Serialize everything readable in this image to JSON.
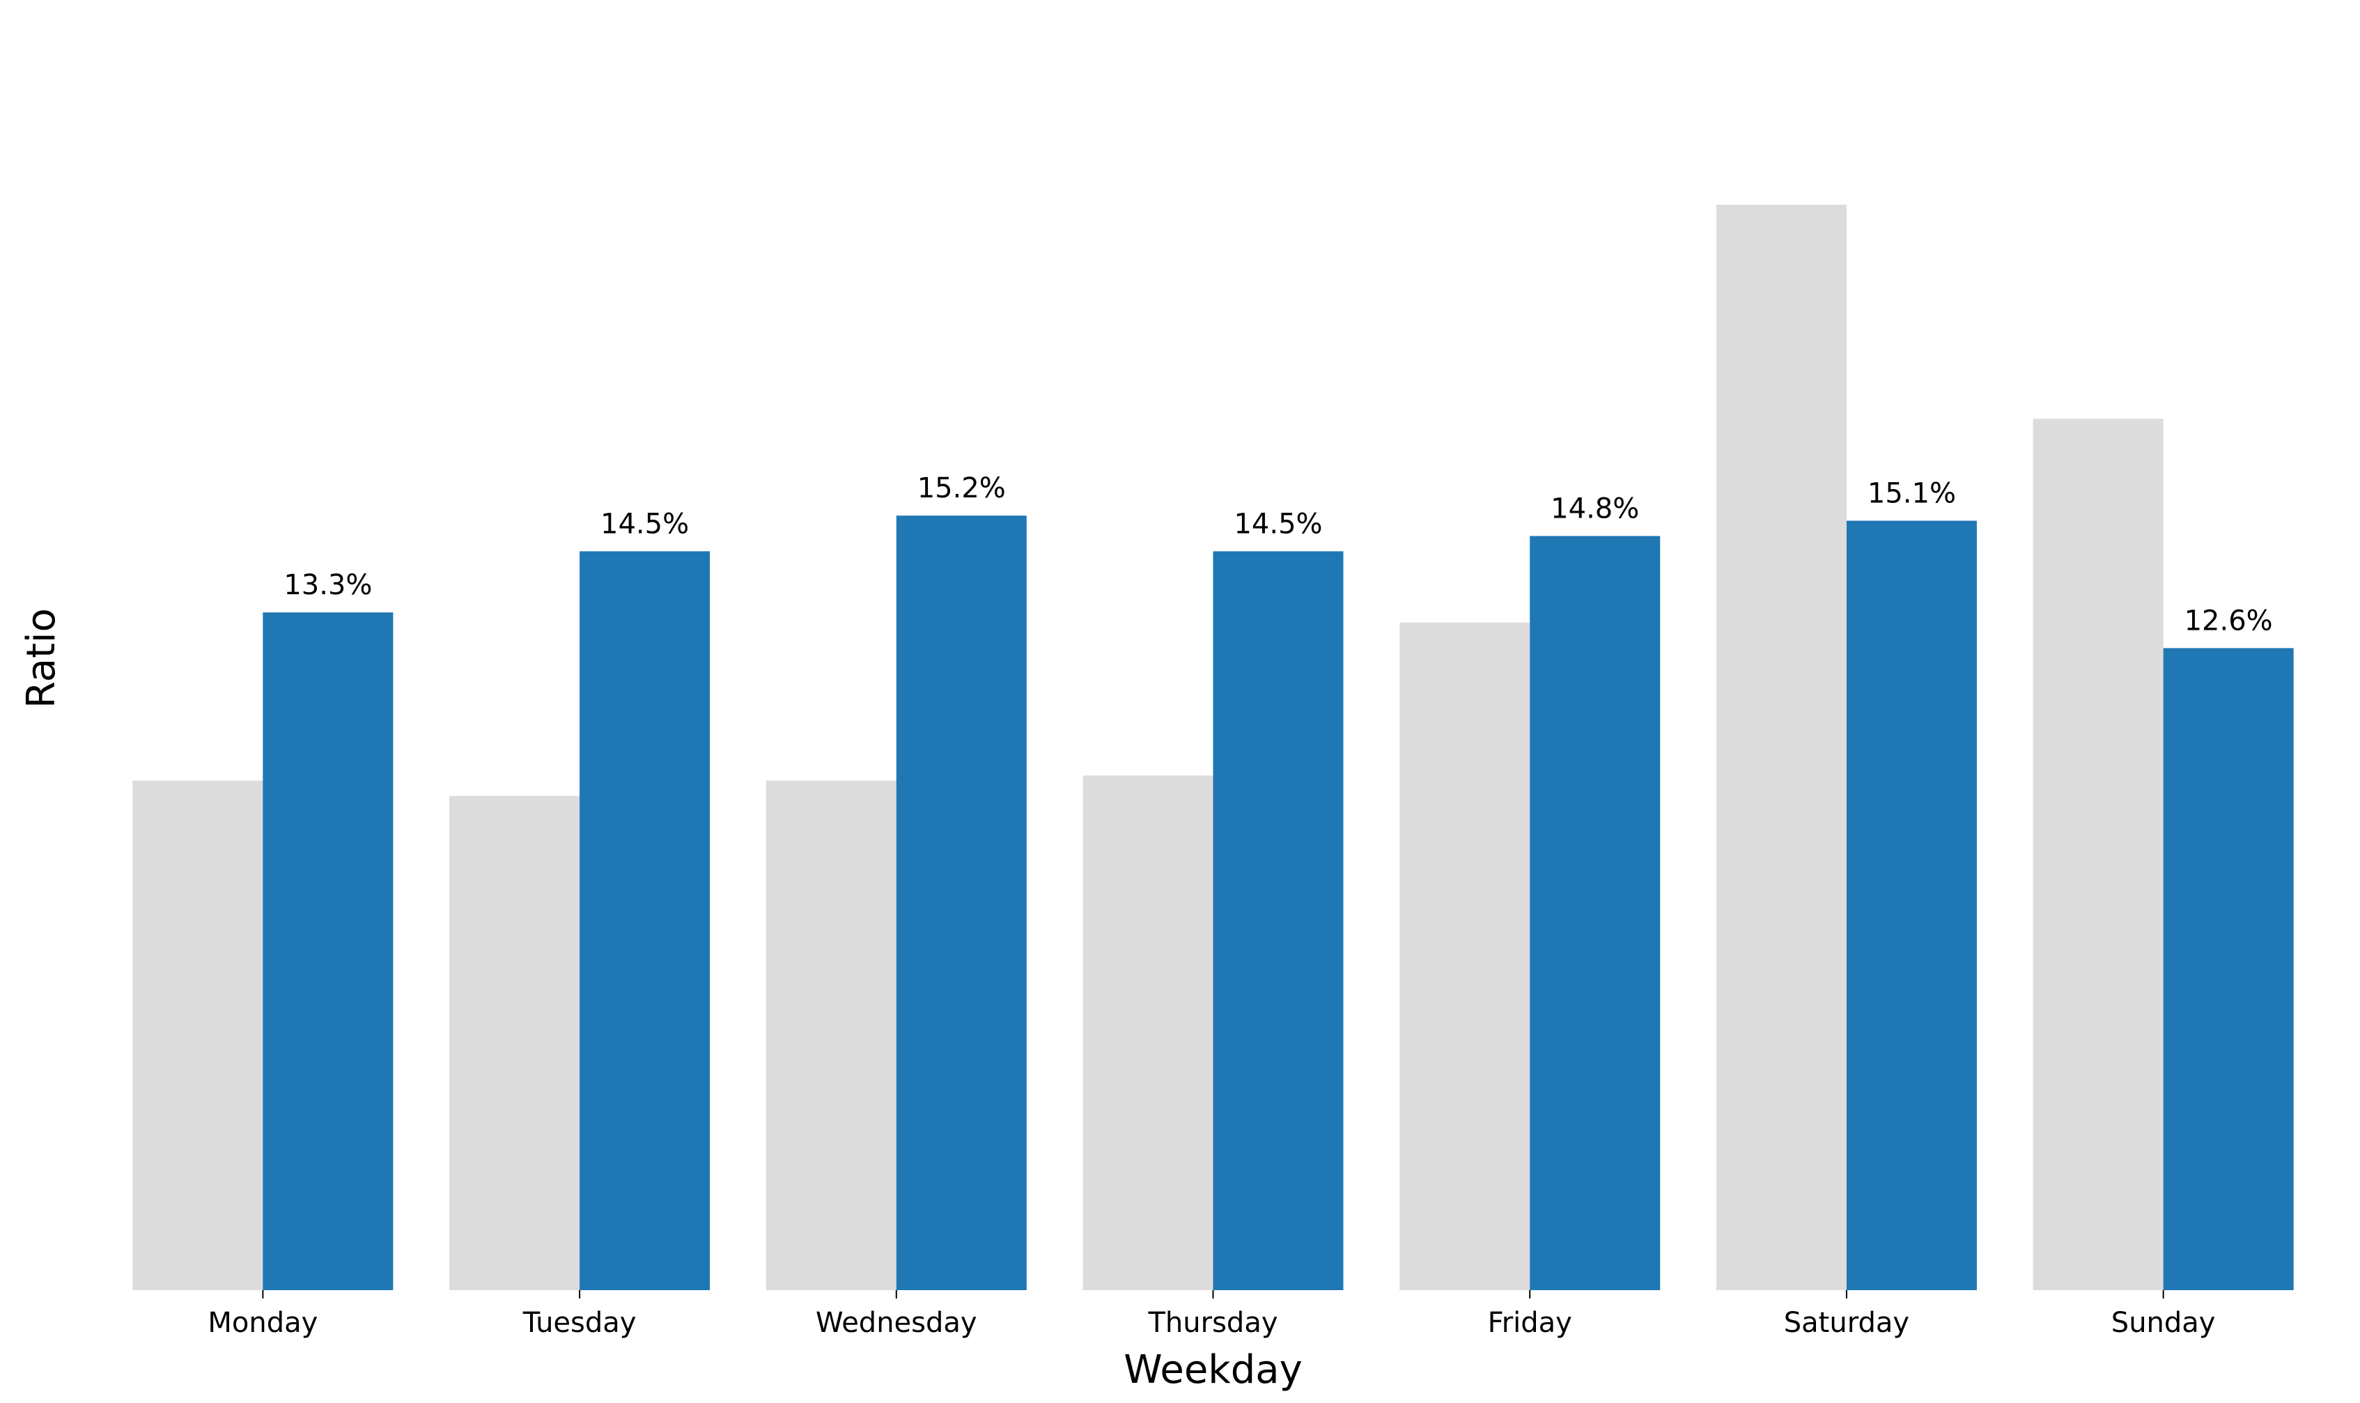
{
  "chart_data": {
    "type": "bar",
    "categories": [
      "Monday",
      "Tuesday",
      "Wednesday",
      "Thursday",
      "Friday",
      "Saturday",
      "Sunday"
    ],
    "series": [
      {
        "values": [
          10.0,
          9.7,
          10.0,
          10.1,
          13.1,
          21.3,
          17.1
        ],
        "color": "#dcdcdc",
        "show_labels": false
      },
      {
        "values": [
          13.3,
          14.5,
          15.2,
          14.5,
          14.8,
          15.1,
          12.6
        ],
        "labels": [
          "13.3%",
          "14.5%",
          "15.2%",
          "14.5%",
          "14.8%",
          "15.1%",
          "12.6%"
        ],
        "color": "#1f77b4",
        "show_labels": true
      }
    ],
    "xlabel": "Weekday",
    "ylabel": "Ratio",
    "ylim": [
      0,
      23.2
    ],
    "grid": false,
    "legend": "none"
  }
}
